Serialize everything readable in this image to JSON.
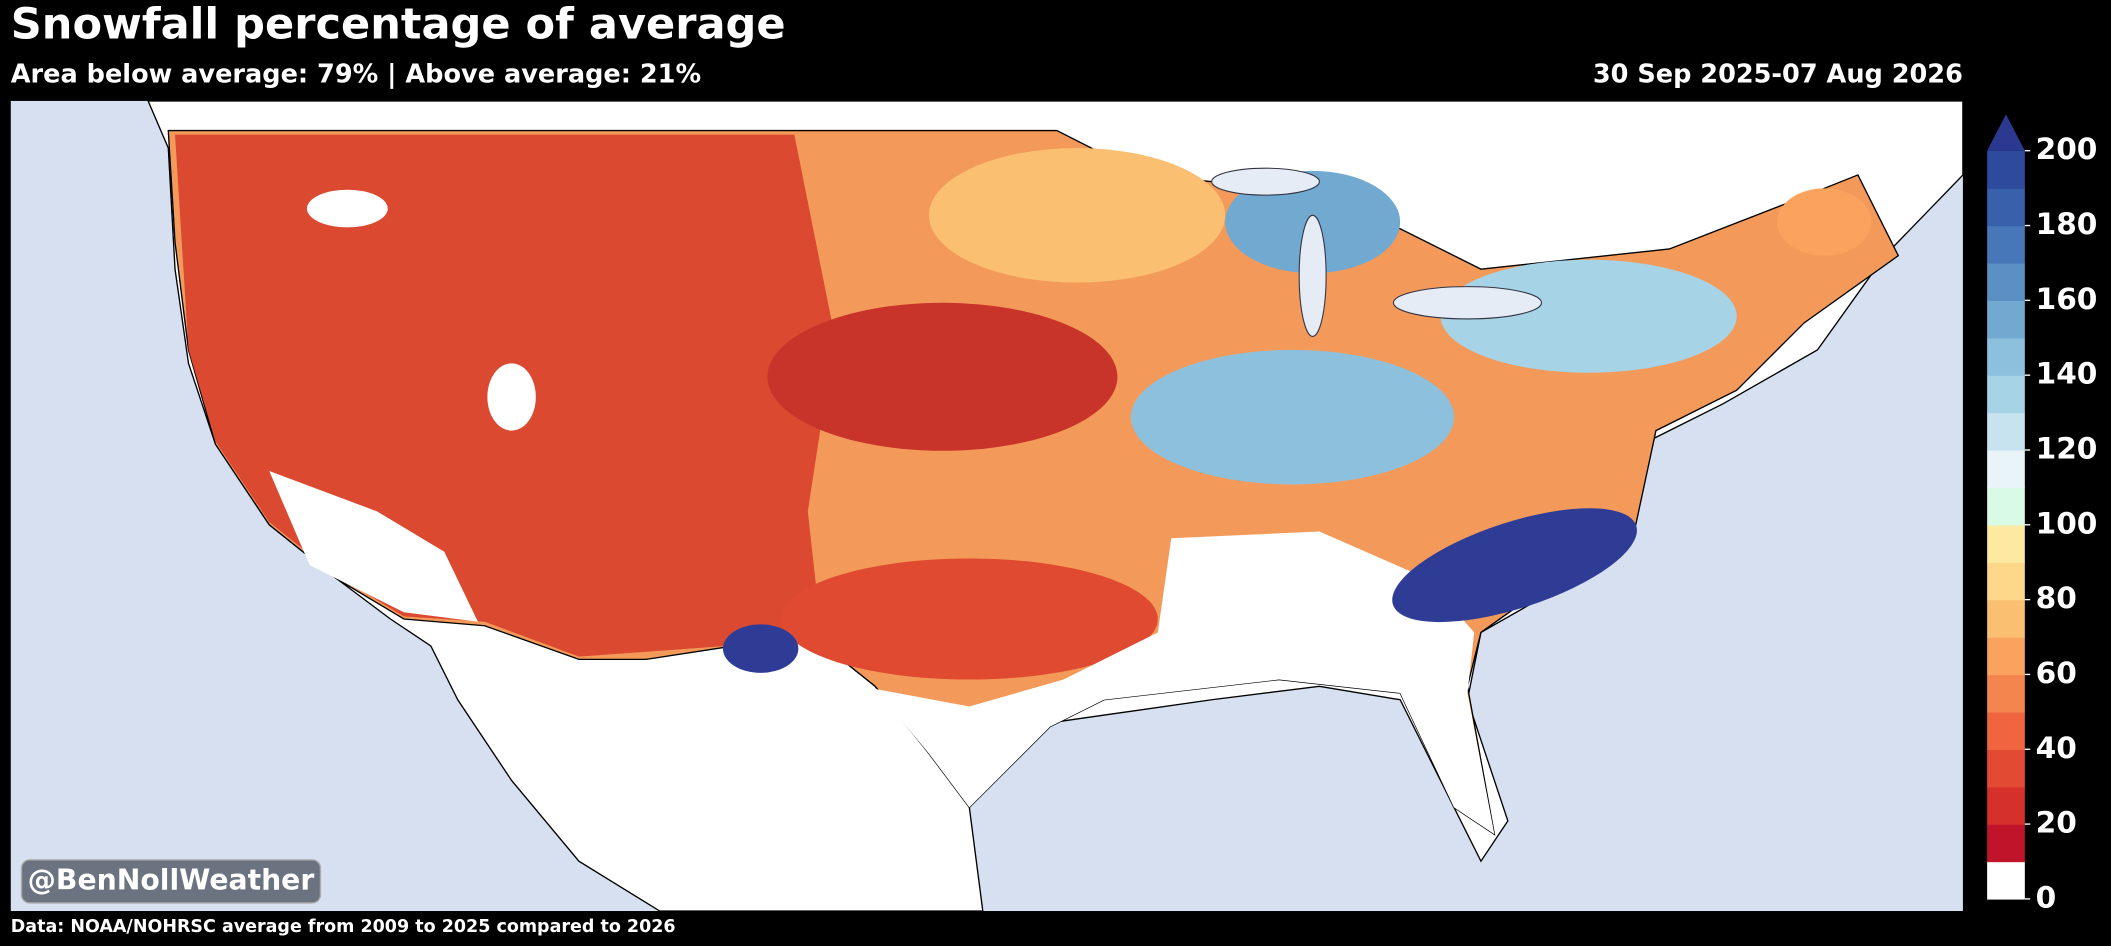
{
  "header": {
    "title": "Snowfall percentage of average",
    "subtitle": "Area below average: 79% | Above average: 21%",
    "date": "30 Sep 2025-07 Aug 2026"
  },
  "colorbar": {
    "range": [
      0,
      200
    ],
    "ticks": [
      0,
      20,
      40,
      60,
      80,
      100,
      120,
      140,
      160,
      180,
      200
    ],
    "colors": [
      "#ffffff",
      "#c0142a",
      "#d6302a",
      "#e34a33",
      "#f06440",
      "#f5854f",
      "#f9a35e",
      "#fbbf72",
      "#fdd88a",
      "#fdeaa0",
      "#d9fbe6",
      "#e8f4f8",
      "#c7e3ef",
      "#a6d3e6",
      "#8cc0dc",
      "#72a9d1",
      "#5b90c4",
      "#4777b8",
      "#3960aa",
      "#2e4a9c"
    ],
    "extend_color": "#2b3990"
  },
  "watermark": "@BenNollWeather",
  "footer": "Data: NOAA/NOHRSC average from 2009 to 2025 compared to 2026"
}
